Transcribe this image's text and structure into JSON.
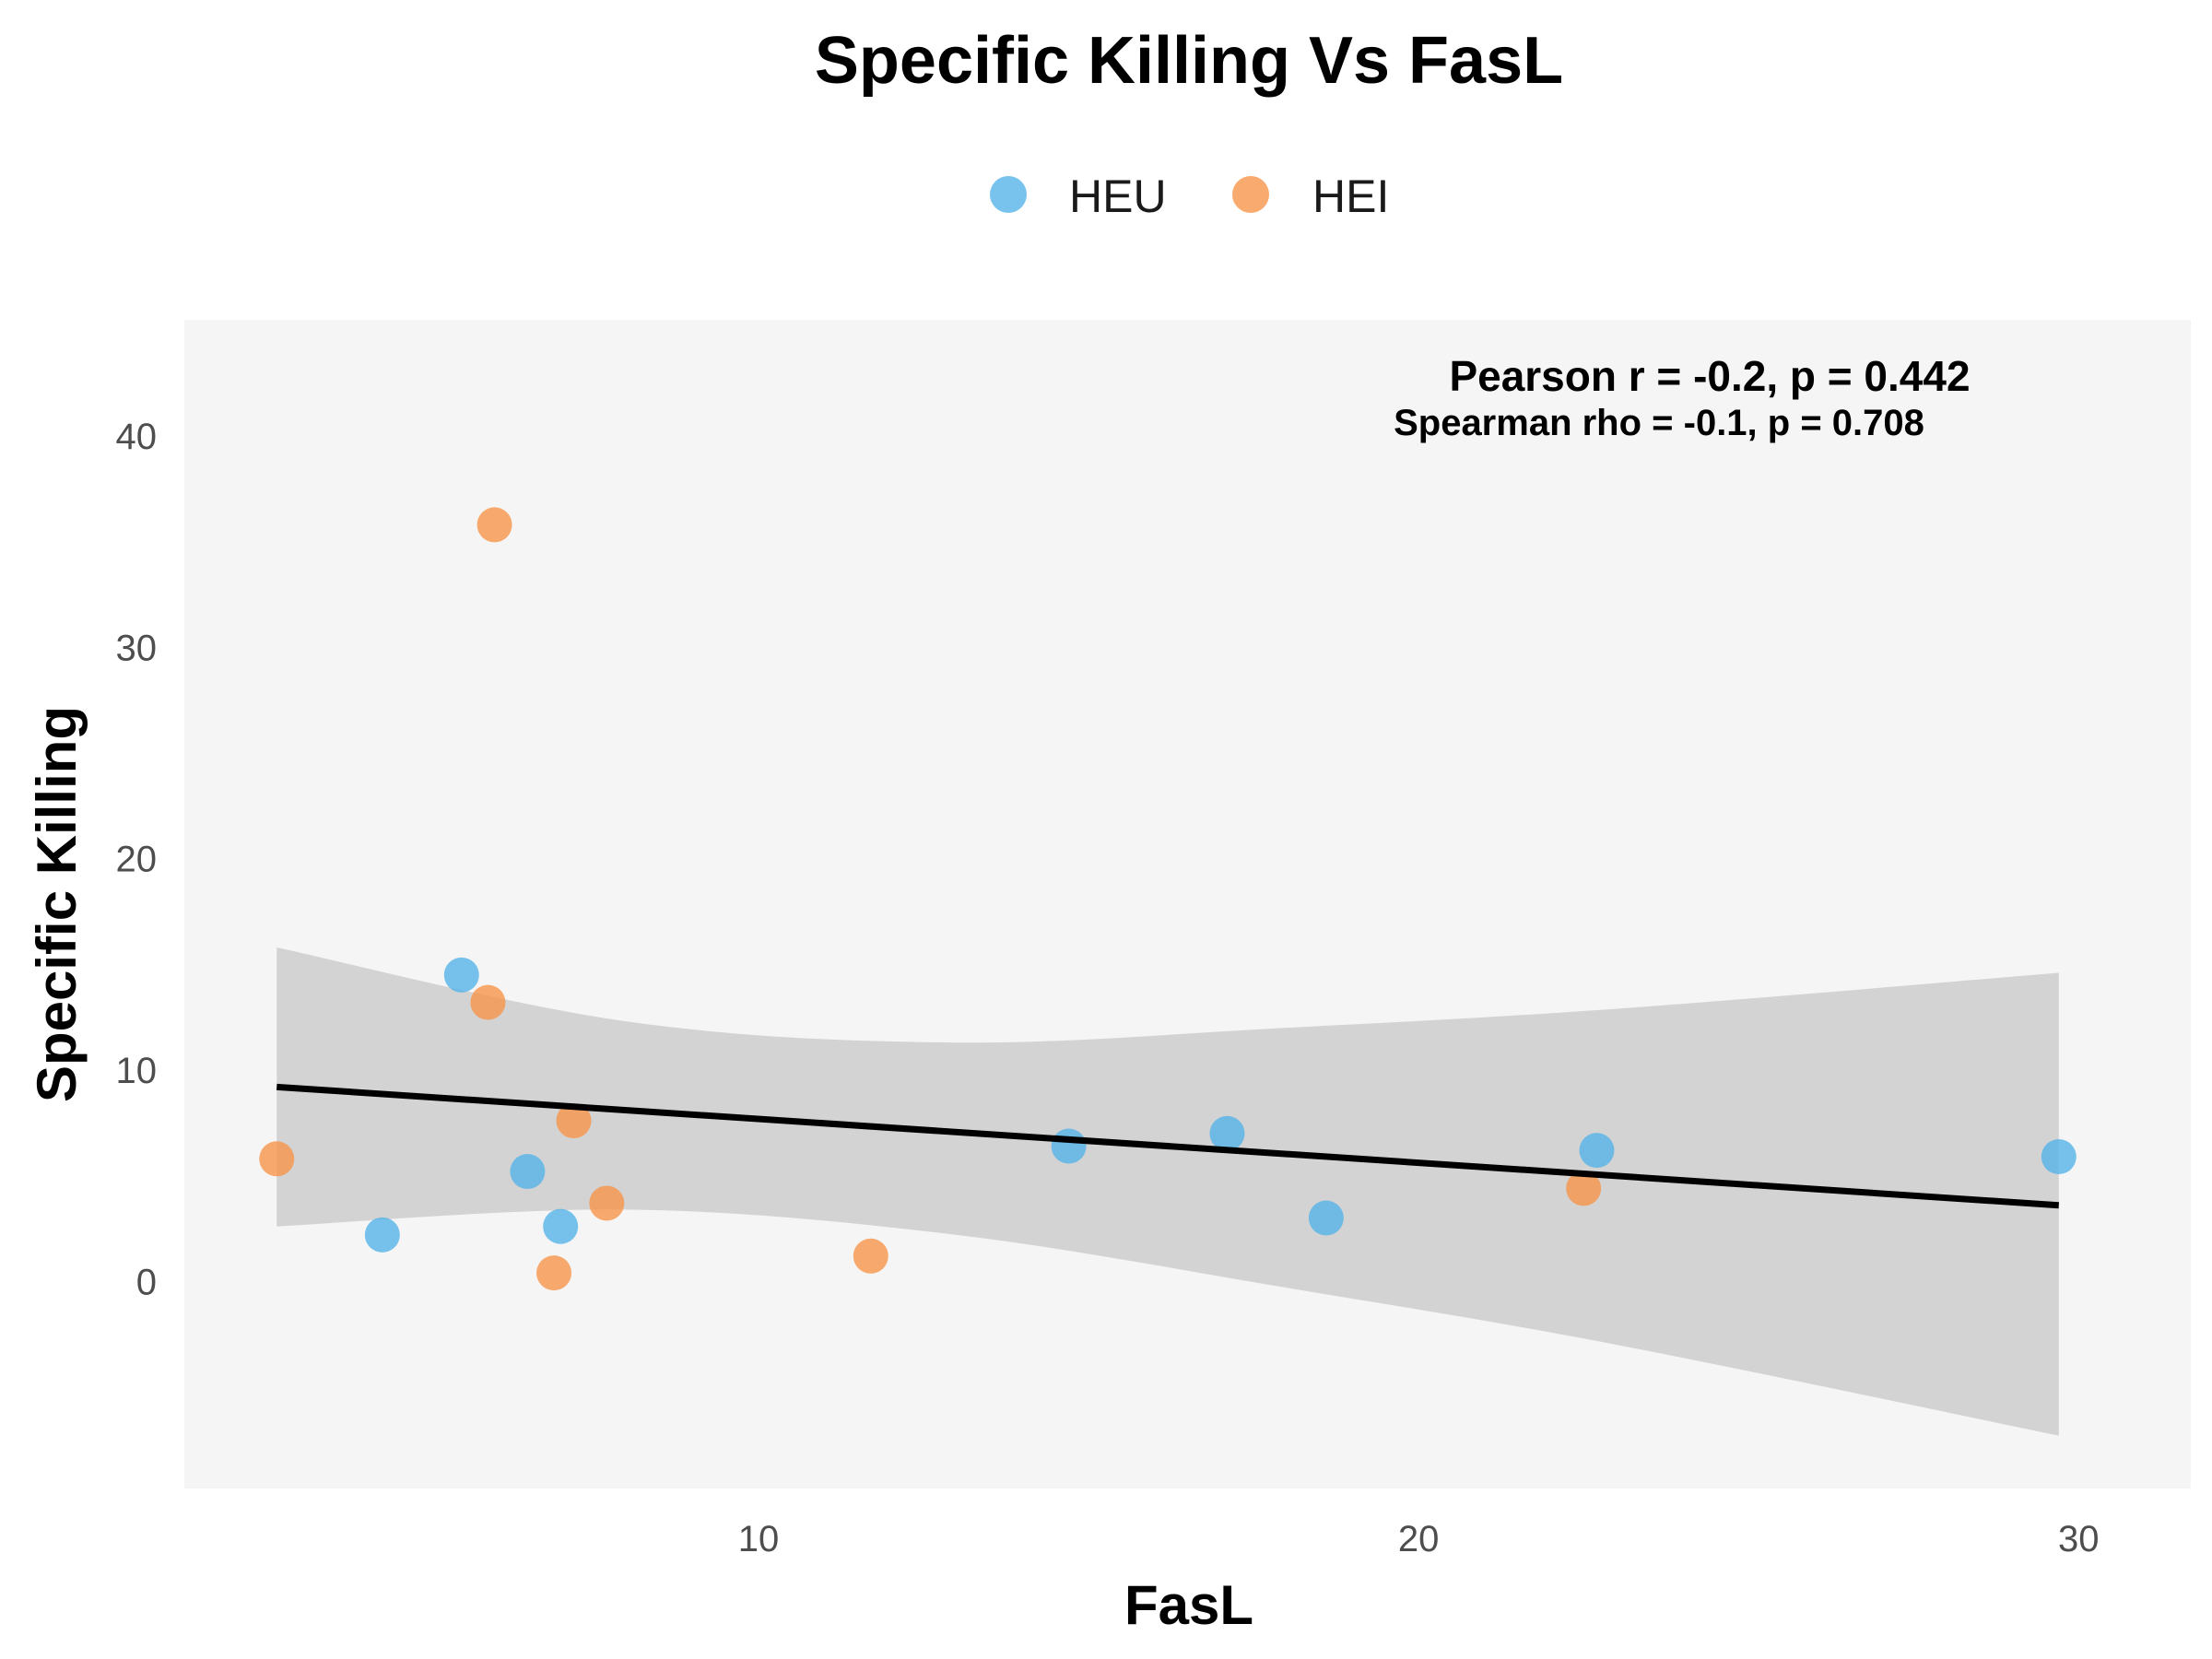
{
  "chart_data": {
    "type": "scatter",
    "title": "Specific Killing Vs FasL",
    "xlabel": "FasL",
    "ylabel": "Specific Killing",
    "xlim": [
      1.3,
      31.7
    ],
    "ylim": [
      -9.8,
      45.5
    ],
    "xticks": [
      10,
      20,
      30
    ],
    "yticks": [
      0,
      10,
      20,
      30,
      40
    ],
    "grid": false,
    "legend_position": "top",
    "series": [
      {
        "name": "HEU",
        "color": "#56B4E9",
        "points": [
          {
            "x": 4.3,
            "y": 2.2
          },
          {
            "x": 5.5,
            "y": 14.5
          },
          {
            "x": 6.5,
            "y": 5.2
          },
          {
            "x": 7.0,
            "y": 2.6
          },
          {
            "x": 14.7,
            "y": 6.4
          },
          {
            "x": 17.1,
            "y": 7.0
          },
          {
            "x": 18.6,
            "y": 3.0
          },
          {
            "x": 22.7,
            "y": 6.2
          },
          {
            "x": 29.7,
            "y": 5.9
          }
        ]
      },
      {
        "name": "HEI",
        "color": "#F8954A",
        "points": [
          {
            "x": 2.7,
            "y": 5.8
          },
          {
            "x": 6.0,
            "y": 35.8
          },
          {
            "x": 5.9,
            "y": 13.2
          },
          {
            "x": 7.2,
            "y": 7.6
          },
          {
            "x": 7.7,
            "y": 3.7
          },
          {
            "x": 6.9,
            "y": 0.4
          },
          {
            "x": 11.7,
            "y": 1.2
          },
          {
            "x": 22.5,
            "y": 4.4
          }
        ]
      }
    ],
    "regression": {
      "color": "#000000",
      "band_color": "#d0d0d0",
      "x": [
        2.7,
        8.0,
        13.0,
        18.0,
        23.0,
        29.7
      ],
      "y": [
        9.2,
        8.0,
        6.9,
        5.8,
        4.9,
        3.6
      ],
      "ci_lower": [
        2.6,
        3.4,
        2.2,
        -0.3,
        -3.0,
        -7.3
      ],
      "ci_upper": [
        15.8,
        12.3,
        11.3,
        12.0,
        12.9,
        14.6
      ]
    },
    "annotations": [
      "Pearson r = -0.2, p = 0.442",
      "Spearman rho = -0.1, p = 0.708"
    ]
  }
}
